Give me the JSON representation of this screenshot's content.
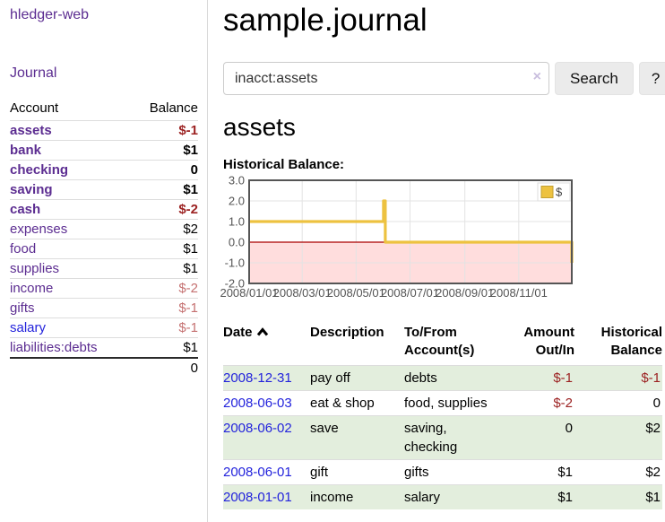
{
  "app": {
    "brand": "hledger-web",
    "nav_journal": "Journal"
  },
  "sidebar": {
    "accounts_header": {
      "account": "Account",
      "balance": "Balance"
    },
    "accounts": [
      {
        "name": "assets",
        "indent": 0,
        "balance": "$-1",
        "bold": true,
        "balance_style": "neg-strong",
        "link": "purple"
      },
      {
        "name": "bank",
        "indent": 1,
        "balance": "$1",
        "bold": true,
        "balance_style": "strong",
        "link": "purple"
      },
      {
        "name": "checking",
        "indent": 2,
        "balance": "0",
        "bold": true,
        "balance_style": "strong",
        "link": "purple"
      },
      {
        "name": "saving",
        "indent": 2,
        "balance": "$1",
        "bold": true,
        "balance_style": "strong",
        "link": "purple"
      },
      {
        "name": "cash",
        "indent": 1,
        "balance": "$-2",
        "bold": true,
        "balance_style": "neg-strong",
        "link": "purple"
      },
      {
        "name": "expenses",
        "indent": 0,
        "balance": "$2",
        "bold": false,
        "balance_style": "normal",
        "link": "purple"
      },
      {
        "name": "food",
        "indent": 1,
        "balance": "$1",
        "bold": false,
        "balance_style": "normal",
        "link": "purple"
      },
      {
        "name": "supplies",
        "indent": 1,
        "balance": "$1",
        "bold": false,
        "balance_style": "normal",
        "link": "purple"
      },
      {
        "name": "income",
        "indent": 0,
        "balance": "$-2",
        "bold": false,
        "balance_style": "neg-faded",
        "link": "purple"
      },
      {
        "name": "gifts",
        "indent": 1,
        "balance": "$-1",
        "bold": false,
        "balance_style": "neg-faded",
        "link": "purple"
      },
      {
        "name": "salary",
        "indent": 1,
        "balance": "$-1",
        "bold": false,
        "balance_style": "neg-faded",
        "link": "blue"
      },
      {
        "name": "liabilities:debts",
        "indent": 0,
        "balance": "$1",
        "bold": false,
        "balance_style": "normal",
        "link": "purple"
      }
    ],
    "total": "0"
  },
  "header": {
    "title": "sample.journal"
  },
  "search": {
    "value": "inacct:assets",
    "clear_icon": "×",
    "search_label": "Search",
    "help_label": "?"
  },
  "register": {
    "heading": "assets",
    "chart_label": "Historical Balance:",
    "table": {
      "headers": {
        "date": "Date",
        "description": "Description",
        "tofrom": "To/From Account(s)",
        "amount": "Amount Out/In",
        "balance": "Historical Balance"
      },
      "sort": "ascending",
      "rows": [
        {
          "date": "2008-12-31",
          "description": "pay off",
          "accounts": "debts",
          "amount": "$-1",
          "amount_neg": true,
          "balance": "$-1",
          "balance_neg": true,
          "green": true
        },
        {
          "date": "2008-06-03",
          "description": "eat & shop",
          "accounts": "food, supplies",
          "amount": "$-2",
          "amount_neg": true,
          "balance": "0",
          "balance_neg": false,
          "green": false
        },
        {
          "date": "2008-06-02",
          "description": "save",
          "accounts": "saving, checking",
          "amount": "0",
          "amount_neg": false,
          "balance": "$2",
          "balance_neg": false,
          "green": true
        },
        {
          "date": "2008-06-01",
          "description": "gift",
          "accounts": "gifts",
          "amount": "$1",
          "amount_neg": false,
          "balance": "$2",
          "balance_neg": false,
          "green": false
        },
        {
          "date": "2008-01-01",
          "description": "income",
          "accounts": "salary",
          "amount": "$1",
          "amount_neg": false,
          "balance": "$1",
          "balance_neg": false,
          "green": true
        }
      ]
    }
  },
  "chart_data": {
    "type": "line",
    "style": "steps",
    "title": "Historical Balance",
    "series": [
      {
        "name": "$",
        "points": [
          [
            "2008-01-01",
            1
          ],
          [
            "2008-06-01",
            2
          ],
          [
            "2008-06-03",
            0
          ],
          [
            "2008-12-31",
            -1
          ]
        ]
      }
    ],
    "x_range": [
      "2008-01-01",
      "2008-12-31"
    ],
    "ylim": [
      -2,
      3
    ],
    "yticks": [
      3.0,
      2.0,
      1.0,
      0.0,
      -1.0,
      -2.0
    ],
    "xticks": [
      {
        "label": "2008/01/01",
        "date": "2008-01-01"
      },
      {
        "label": "2008/03/01",
        "date": "2008-03-01"
      },
      {
        "label": "2008/05/01",
        "date": "2008-05-01"
      },
      {
        "label": "2008/07/01",
        "date": "2008-07-01"
      },
      {
        "label": "2008/09/01",
        "date": "2008-09-01"
      },
      {
        "label": "2008/11/01",
        "date": "2008-11-01"
      }
    ],
    "legend": {
      "label": "$",
      "position": "top-right"
    },
    "grid": true,
    "colors": {
      "series": "#edc240",
      "marker_fill": "#ffffff",
      "negative_region": "#ffdddd",
      "zero_line": "#aa0000",
      "grid": "#e3e3e3",
      "border": "#555555",
      "tick_text": "#545454"
    }
  },
  "ui_colors": {
    "purple_link": "#5c2d91",
    "blue_link": "#2323dc",
    "negative": "#9c2222",
    "negative_faded": "#c57171",
    "row_green": "#e3eedd",
    "button_bg": "#ebebeb",
    "sidebar_border": "#d9d9d9"
  }
}
